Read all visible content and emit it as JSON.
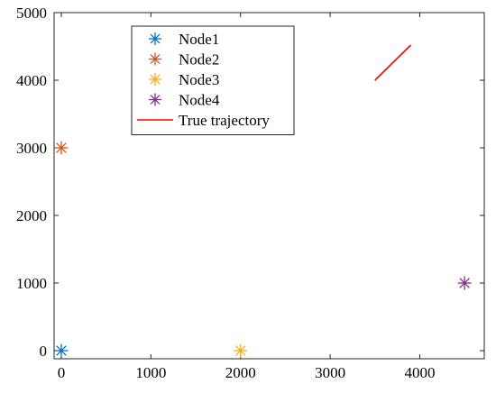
{
  "chart_data": {
    "type": "scatter",
    "title": "",
    "xlabel": "",
    "ylabel": "",
    "xlim": [
      -80,
      4720
    ],
    "ylim": [
      -120,
      5000
    ],
    "xticks": [
      0,
      1000,
      2000,
      3000,
      4000
    ],
    "yticks": [
      0,
      1000,
      2000,
      3000,
      4000,
      5000
    ],
    "grid": false,
    "legend_position": "upper-left-inside",
    "series": [
      {
        "name": "Node1",
        "kind": "marker",
        "marker": "asterisk",
        "color": "#0072BD",
        "x": [
          0
        ],
        "y": [
          0
        ]
      },
      {
        "name": "Node2",
        "kind": "marker",
        "marker": "asterisk",
        "color": "#D95319",
        "x": [
          0
        ],
        "y": [
          3000
        ]
      },
      {
        "name": "Node3",
        "kind": "marker",
        "marker": "asterisk",
        "color": "#EDB120",
        "x": [
          2000
        ],
        "y": [
          0
        ]
      },
      {
        "name": "Node4",
        "kind": "marker",
        "marker": "asterisk",
        "color": "#7E2F8E",
        "x": [
          4500
        ],
        "y": [
          1000
        ]
      },
      {
        "name": "True trajectory",
        "kind": "line",
        "color": "#FF0000",
        "x": [
          3500,
          3900
        ],
        "y": [
          4000,
          4520
        ]
      }
    ]
  }
}
